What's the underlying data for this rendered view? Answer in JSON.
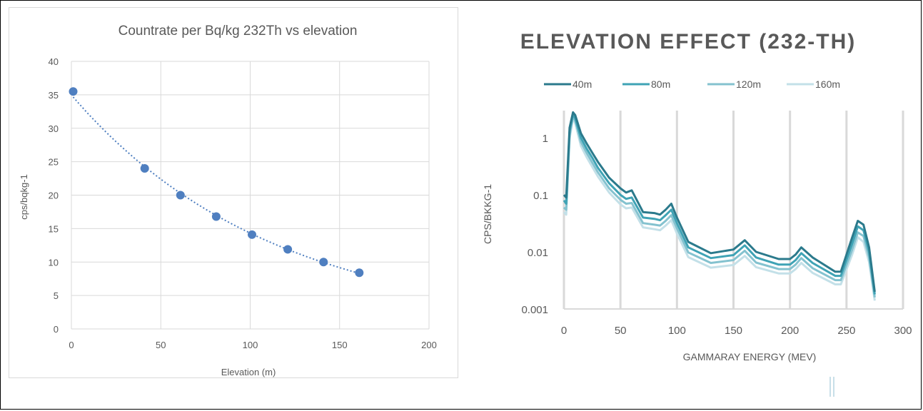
{
  "chart_data": [
    {
      "type": "scatter",
      "title": "Countrate per Bq/kg 232Th vs elevation",
      "xlabel": "Elevation (m)",
      "ylabel": "cps/bqkg-1",
      "xlim": [
        0,
        200
      ],
      "ylim": [
        0,
        40
      ],
      "x_ticks": [
        "0",
        "50",
        "100",
        "150",
        "200"
      ],
      "y_ticks": [
        "0",
        "5",
        "10",
        "15",
        "20",
        "25",
        "30",
        "35",
        "40"
      ],
      "grid": true,
      "trendline": "dotted exponential",
      "points": [
        {
          "x": 1,
          "y": 35.5
        },
        {
          "x": 41,
          "y": 24
        },
        {
          "x": 61,
          "y": 20
        },
        {
          "x": 81,
          "y": 16.8
        },
        {
          "x": 101,
          "y": 14.1
        },
        {
          "x": 121,
          "y": 11.9
        },
        {
          "x": 141,
          "y": 10
        },
        {
          "x": 161,
          "y": 8.4
        }
      ],
      "colors": {
        "marker": "#4f7fc0",
        "trend": "#4f7fc0",
        "grid": "#d9d9d9"
      }
    },
    {
      "type": "line",
      "title": "ELEVATION EFFECT (232-TH)",
      "xlabel": "GAMMARAY ENERGY (MEV)",
      "ylabel": "CPS/BKKG-1",
      "xlim": [
        0,
        300
      ],
      "ylim": [
        0.001,
        3
      ],
      "yscale": "log",
      "x_ticks": [
        "0",
        "50",
        "100",
        "150",
        "200",
        "250",
        "300"
      ],
      "y_ticks": [
        "0.001",
        "0.01",
        "0.1",
        "1"
      ],
      "grid": true,
      "legend": "top",
      "x": [
        0,
        2,
        5,
        8,
        10,
        15,
        20,
        25,
        30,
        40,
        50,
        55,
        60,
        70,
        80,
        85,
        90,
        95,
        100,
        110,
        130,
        150,
        160,
        170,
        190,
        200,
        205,
        210,
        220,
        240,
        245,
        255,
        260,
        265,
        270,
        275
      ],
      "series": [
        {
          "name": "40m",
          "color": "#2b7a8c",
          "values": [
            0.1,
            0.09,
            1.5,
            2.8,
            2.5,
            1.2,
            0.8,
            0.55,
            0.38,
            0.2,
            0.13,
            0.11,
            0.12,
            0.05,
            0.048,
            0.045,
            0.055,
            0.07,
            0.04,
            0.015,
            0.0095,
            0.011,
            0.016,
            0.01,
            0.0075,
            0.0075,
            0.009,
            0.012,
            0.008,
            0.0045,
            0.0045,
            0.018,
            0.035,
            0.03,
            0.012,
            0.002
          ]
        },
        {
          "name": "80m",
          "color": "#3fa3b5",
          "values": [
            0.08,
            0.07,
            1.3,
            2.6,
            2.2,
            1.0,
            0.65,
            0.45,
            0.3,
            0.16,
            0.1,
            0.085,
            0.09,
            0.04,
            0.038,
            0.036,
            0.044,
            0.055,
            0.032,
            0.012,
            0.0078,
            0.0088,
            0.013,
            0.008,
            0.006,
            0.006,
            0.0072,
            0.0095,
            0.0064,
            0.0038,
            0.0038,
            0.014,
            0.028,
            0.024,
            0.01,
            0.0018
          ]
        },
        {
          "name": "120m",
          "color": "#84c2cf",
          "values": [
            0.06,
            0.055,
            1.1,
            2.4,
            2.0,
            0.85,
            0.55,
            0.37,
            0.25,
            0.13,
            0.082,
            0.07,
            0.072,
            0.032,
            0.03,
            0.029,
            0.035,
            0.044,
            0.026,
            0.0098,
            0.0064,
            0.0072,
            0.0105,
            0.0065,
            0.005,
            0.005,
            0.006,
            0.0078,
            0.0052,
            0.0032,
            0.0032,
            0.011,
            0.022,
            0.019,
            0.008,
            0.0016
          ]
        },
        {
          "name": "160m",
          "color": "#c3e0e8",
          "values": [
            0.05,
            0.045,
            0.95,
            2.2,
            1.8,
            0.72,
            0.46,
            0.31,
            0.21,
            0.11,
            0.068,
            0.058,
            0.06,
            0.027,
            0.025,
            0.024,
            0.029,
            0.036,
            0.021,
            0.0081,
            0.0053,
            0.0059,
            0.0085,
            0.0054,
            0.0042,
            0.0042,
            0.005,
            0.0064,
            0.0043,
            0.0027,
            0.0027,
            0.009,
            0.018,
            0.015,
            0.0066,
            0.0014
          ]
        }
      ],
      "colors": {
        "title": "#595959",
        "axis_text": "#595959",
        "grid": "#d9d9d9"
      }
    }
  ]
}
